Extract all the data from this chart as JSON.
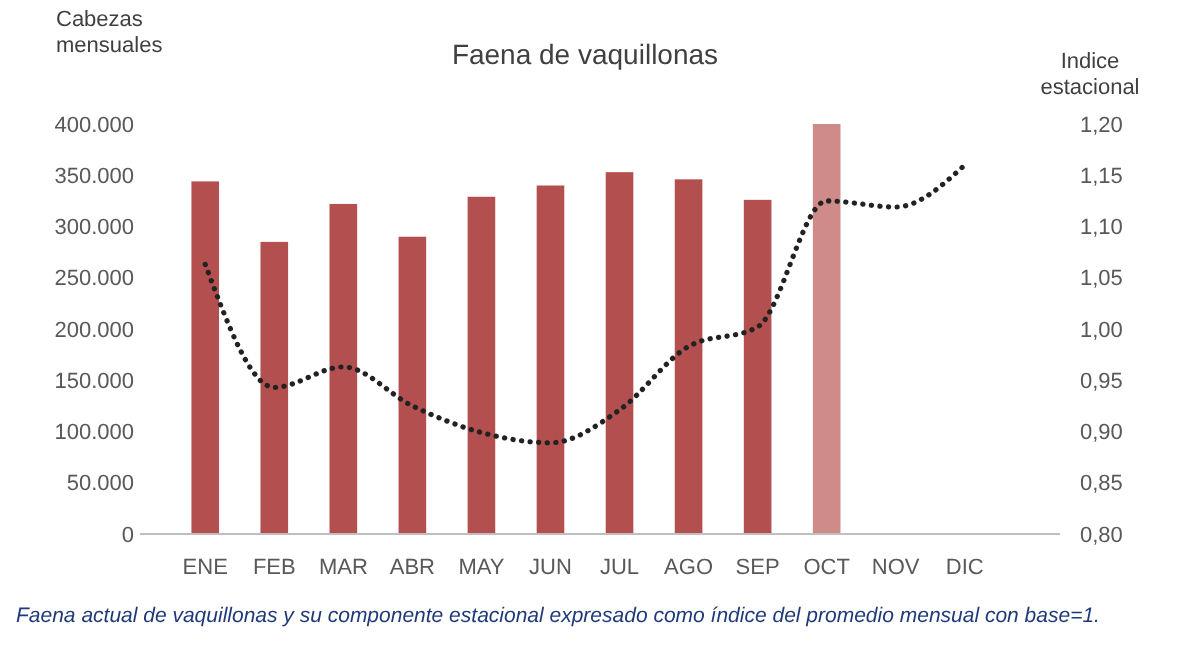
{
  "chart_data": {
    "type": "bar",
    "title": "Faena de vaquillonas",
    "ylabel": "Cabezas mensuales",
    "y2label": "Indice estacional",
    "categories": [
      "ENE",
      "FEB",
      "MAR",
      "ABR",
      "MAY",
      "JUN",
      "JUL",
      "AGO",
      "SEP",
      "OCT",
      "NOV",
      "DIC"
    ],
    "series": [
      {
        "colors": [
          "#b34f4f",
          "#b34f4f",
          "#b34f4f",
          "#b34f4f",
          "#b34f4f",
          "#b34f4f",
          "#b34f4f",
          "#b34f4f",
          "#b34f4f",
          "#cf8a8a",
          null,
          null
        ],
        "values": [
          344000,
          285000,
          322000,
          290000,
          329000,
          340000,
          353000,
          346000,
          326000,
          400000,
          null,
          null
        ]
      },
      {
        "type": "line",
        "axis": "y2",
        "color": "#222222",
        "line_style": "dotted",
        "values": [
          1.063,
          0.943,
          0.963,
          0.925,
          0.899,
          0.889,
          0.921,
          0.983,
          1.002,
          1.125,
          1.119,
          1.16
        ]
      }
    ],
    "ylim": [
      0,
      400000
    ],
    "yticks": [
      {
        "value": 0,
        "label": "0"
      },
      {
        "value": 50000,
        "label": "50.000"
      },
      {
        "value": 100000,
        "label": "100.000"
      },
      {
        "value": 150000,
        "label": "150.000"
      },
      {
        "value": 200000,
        "label": "200.000"
      },
      {
        "value": 250000,
        "label": "250.000"
      },
      {
        "value": 300000,
        "label": "300.000"
      },
      {
        "value": 350000,
        "label": "350.000"
      },
      {
        "value": 400000,
        "label": "400.000"
      }
    ],
    "y2lim": [
      0.8,
      1.2
    ],
    "y2ticks": [
      {
        "value": 0.8,
        "label": "0,80"
      },
      {
        "value": 0.85,
        "label": "0,85"
      },
      {
        "value": 0.9,
        "label": "0,90"
      },
      {
        "value": 0.95,
        "label": "0,95"
      },
      {
        "value": 1.0,
        "label": "1,00"
      },
      {
        "value": 1.05,
        "label": "1,05"
      },
      {
        "value": 1.1,
        "label": "1,10"
      },
      {
        "value": 1.15,
        "label": "1,15"
      },
      {
        "value": 1.2,
        "label": "1,20"
      }
    ],
    "grid": false,
    "annotations": [
      "Faena actual de vaquillonas y su componente estacional expresado como índice del promedio mensual con base=1."
    ]
  }
}
